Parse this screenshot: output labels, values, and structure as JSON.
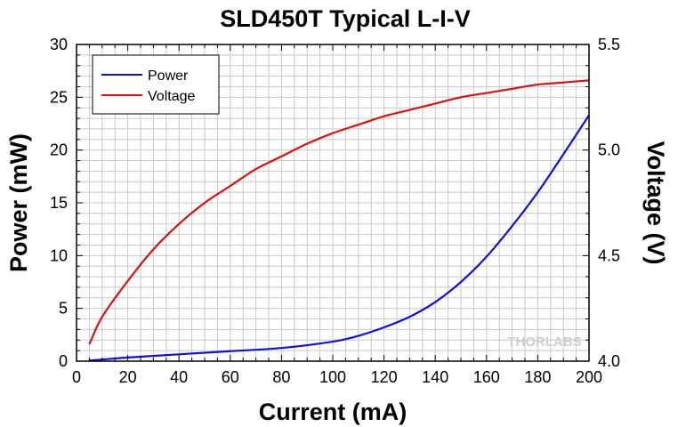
{
  "watermark": "THORLABS",
  "chart_data": {
    "type": "line",
    "title": "SLD450T Typical L-I-V",
    "xlabel": "Current (mA)",
    "ylabel": "Power (mW)",
    "y2label": "Voltage (V)",
    "xlim": [
      0,
      200
    ],
    "ylim": [
      0,
      30
    ],
    "y2lim": [
      4.0,
      5.5
    ],
    "xticks": [
      "0",
      "20",
      "40",
      "60",
      "80",
      "100",
      "120",
      "140",
      "160",
      "180",
      "200"
    ],
    "yticks": [
      "0",
      "5",
      "10",
      "15",
      "20",
      "25",
      "30"
    ],
    "y2ticks": [
      "4.0",
      "4.5",
      "5.0",
      "5.5"
    ],
    "grid": true,
    "legend_position": "top-left",
    "series": [
      {
        "name": "Power",
        "axis": "left",
        "color": "#1010dd",
        "x": [
          5,
          20,
          40,
          60,
          80,
          100,
          110,
          120,
          130,
          140,
          150,
          160,
          170,
          180,
          190,
          200
        ],
        "y": [
          0.05,
          0.35,
          0.65,
          0.95,
          1.25,
          1.85,
          2.4,
          3.2,
          4.2,
          5.6,
          7.5,
          9.9,
          12.8,
          16.0,
          19.6,
          23.3
        ]
      },
      {
        "name": "Voltage",
        "axis": "right",
        "color": "#dd1010",
        "x": [
          5,
          10,
          20,
          30,
          40,
          50,
          60,
          70,
          80,
          90,
          100,
          110,
          120,
          130,
          140,
          150,
          160,
          170,
          180,
          190,
          200
        ],
        "y": [
          4.08,
          4.21,
          4.38,
          4.53,
          4.65,
          4.75,
          4.83,
          4.91,
          4.97,
          5.03,
          5.08,
          5.12,
          5.16,
          5.19,
          5.22,
          5.25,
          5.27,
          5.29,
          5.31,
          5.32,
          5.33
        ]
      }
    ]
  }
}
